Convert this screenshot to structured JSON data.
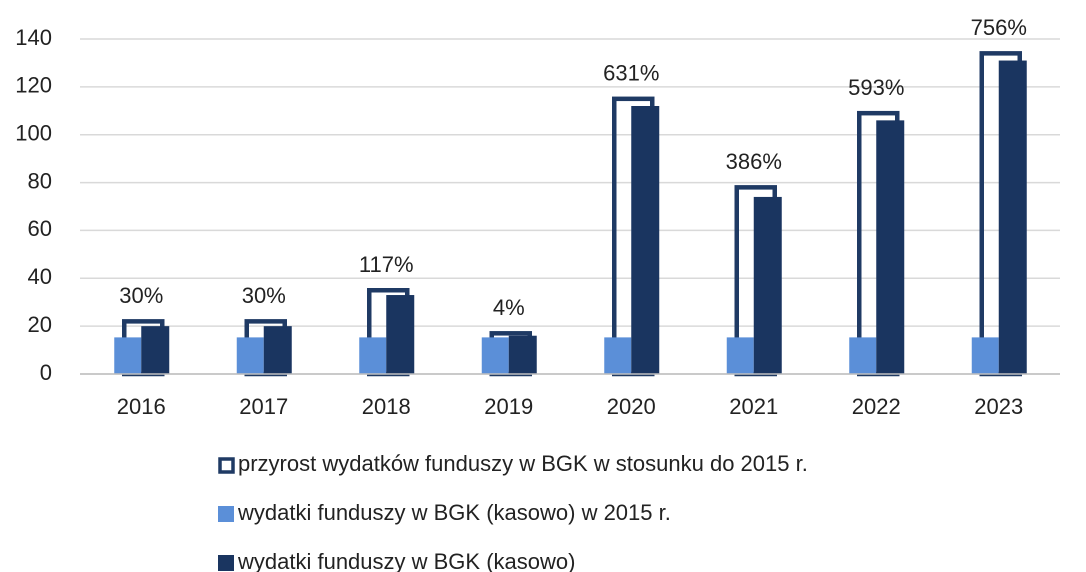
{
  "chart_data": {
    "type": "bar",
    "categories": [
      "2016",
      "2017",
      "2018",
      "2019",
      "2020",
      "2021",
      "2022",
      "2023"
    ],
    "series": [
      {
        "name": "przyrost wydatków funduszy w BGK w stosunku do 2015 r.",
        "color": "#1f3a64",
        "fill": false,
        "values": [
          22,
          22,
          35,
          17,
          115,
          78,
          109,
          134
        ]
      },
      {
        "name": "wydatki funduszy w BGK (kasowo) w 2015 r.",
        "color": "#5b8fd8",
        "fill": true,
        "values": [
          15.3,
          15.3,
          15.3,
          15.3,
          15.3,
          15.3,
          15.3,
          15.3
        ]
      },
      {
        "name": "wydatki funduszy w BGK (kasowo)",
        "color": "#1a3560",
        "fill": true,
        "values": [
          20,
          20,
          33,
          16,
          112,
          74,
          106,
          131
        ]
      }
    ],
    "growth_labels": [
      "30%",
      "30%",
      "117%",
      "4%",
      "631%",
      "386%",
      "593%",
      "756%"
    ],
    "ylim": [
      0,
      140
    ],
    "yticks": [
      0,
      20,
      40,
      60,
      80,
      100,
      120,
      140
    ],
    "grid": true
  }
}
